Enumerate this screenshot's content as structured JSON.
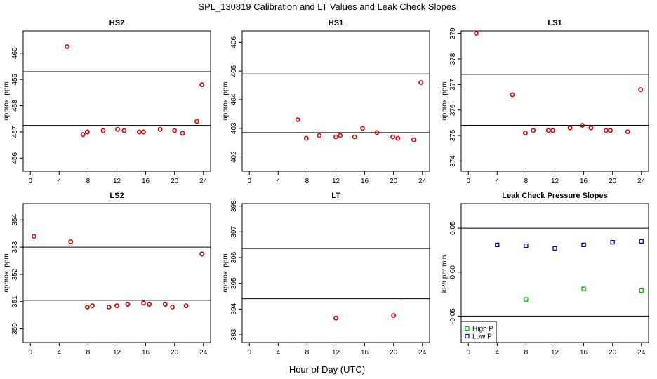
{
  "title": "SPL_130819  Calibration and LT Values and Leak Check Slopes",
  "xlabel": "Hour of Day (UTC)",
  "chart_data": [
    {
      "name": "HS2",
      "type": "scatter",
      "title": "HS2",
      "ylabel": "approx. ppm",
      "xlim": [
        -1,
        25
      ],
      "ylim": [
        455.5,
        460.85
      ],
      "xticks": [
        "0",
        "4",
        "8",
        "12",
        "16",
        "20",
        "24"
      ],
      "yticks": [
        "456",
        "457",
        "458",
        "459",
        "460"
      ],
      "hlines": [
        459.3,
        457.25
      ],
      "series": [
        {
          "name": "values",
          "color": "#dd0000",
          "marker": "circle",
          "x": [
            5.1,
            7.3,
            7.9,
            10.1,
            12.1,
            13.0,
            15.1,
            15.7,
            18.0,
            20.0,
            21.1,
            23.1,
            23.8
          ],
          "y": [
            460.25,
            456.9,
            457.0,
            457.05,
            457.1,
            457.05,
            457.0,
            457.0,
            457.1,
            457.05,
            456.95,
            457.4,
            458.8
          ]
        }
      ]
    },
    {
      "name": "HS1",
      "type": "scatter",
      "title": "HS1",
      "ylabel": "approx. ppm",
      "xlim": [
        -1,
        25
      ],
      "ylim": [
        401.5,
        406.4
      ],
      "xticks": [
        "0",
        "4",
        "8",
        "12",
        "16",
        "20",
        "24"
      ],
      "yticks": [
        "402",
        "403",
        "404",
        "405",
        "406"
      ],
      "hlines": [
        404.9,
        402.85
      ],
      "series": [
        {
          "name": "values",
          "color": "#dd0000",
          "marker": "circle",
          "x": [
            6.7,
            7.9,
            9.7,
            12.0,
            12.6,
            14.6,
            15.7,
            17.7,
            19.9,
            20.6,
            22.8,
            23.8
          ],
          "y": [
            403.3,
            402.65,
            402.75,
            402.7,
            402.75,
            402.7,
            403.0,
            402.85,
            402.7,
            402.65,
            402.6,
            404.6
          ]
        }
      ]
    },
    {
      "name": "LS1",
      "type": "scatter",
      "title": "LS1",
      "ylabel": "approx. ppm",
      "xlim": [
        -1,
        25
      ],
      "ylim": [
        373.6,
        379.1
      ],
      "xticks": [
        "0",
        "4",
        "8",
        "12",
        "16",
        "20",
        "24"
      ],
      "yticks": [
        "374",
        "375",
        "376",
        "377",
        "378",
        "379"
      ],
      "hlines": [
        377.4,
        375.4
      ],
      "series": [
        {
          "name": "values",
          "color": "#dd0000",
          "marker": "circle",
          "x": [
            1.1,
            6.1,
            7.9,
            9.0,
            11.1,
            11.7,
            14.1,
            15.8,
            17.0,
            19.1,
            19.7,
            22.1,
            23.9
          ],
          "y": [
            379.0,
            376.6,
            375.1,
            375.2,
            375.2,
            375.2,
            375.3,
            375.4,
            375.3,
            375.2,
            375.2,
            375.15,
            376.8
          ]
        }
      ]
    },
    {
      "name": "LS2",
      "type": "scatter",
      "title": "LS2",
      "ylabel": "approx. ppm",
      "xlim": [
        -1,
        25
      ],
      "ylim": [
        349.5,
        354.6
      ],
      "xticks": [
        "0",
        "4",
        "8",
        "12",
        "16",
        "20",
        "24"
      ],
      "yticks": [
        "350",
        "351",
        "352",
        "353",
        "354"
      ],
      "hlines": [
        353.0,
        351.05
      ],
      "series": [
        {
          "name": "values",
          "color": "#dd0000",
          "marker": "circle",
          "x": [
            0.5,
            5.6,
            7.9,
            8.6,
            10.9,
            12.0,
            13.5,
            15.7,
            16.5,
            18.7,
            19.7,
            21.6,
            23.8
          ],
          "y": [
            353.4,
            353.2,
            350.8,
            350.85,
            350.8,
            350.85,
            350.9,
            350.95,
            350.9,
            350.9,
            350.8,
            350.85,
            352.75
          ]
        }
      ]
    },
    {
      "name": "LT",
      "type": "scatter",
      "title": "LT",
      "ylabel": "approx. ppm",
      "xlim": [
        -1,
        25
      ],
      "ylim": [
        392.7,
        398.1
      ],
      "xticks": [
        "0",
        "4",
        "8",
        "12",
        "16",
        "20",
        "24"
      ],
      "yticks": [
        "393",
        "394",
        "395",
        "396",
        "397",
        "398"
      ],
      "hlines": [
        396.35,
        394.4
      ],
      "series": [
        {
          "name": "values",
          "color": "#dd0000",
          "marker": "circle",
          "x": [
            12.0,
            20.0
          ],
          "y": [
            393.65,
            393.75
          ]
        }
      ]
    },
    {
      "name": "LeakCheck",
      "type": "scatter",
      "title": "Leak Check Pressure Slopes",
      "ylabel": "kPa per min.",
      "xlim": [
        -1,
        25
      ],
      "ylim": [
        -0.08,
        0.078
      ],
      "xticks": [
        "0",
        "4",
        "8",
        "12",
        "16",
        "20",
        "24"
      ],
      "yticks": [
        "-0.05",
        "0.00",
        "0.05"
      ],
      "hlines": [
        0.05,
        -0.05
      ],
      "legend": {
        "position": "bottom-left",
        "entries": [
          "High P",
          "Low P"
        ]
      },
      "series": [
        {
          "name": "High P",
          "color": "#00bb00",
          "marker": "square",
          "x": [
            8,
            16,
            24
          ],
          "y": [
            -0.031,
            -0.019,
            -0.021
          ]
        },
        {
          "name": "Low P",
          "color": "#0000cc",
          "marker": "square",
          "x": [
            4,
            8,
            12,
            16,
            20,
            24
          ],
          "y": [
            0.031,
            0.03,
            0.027,
            0.031,
            0.034,
            0.035
          ]
        }
      ]
    }
  ]
}
